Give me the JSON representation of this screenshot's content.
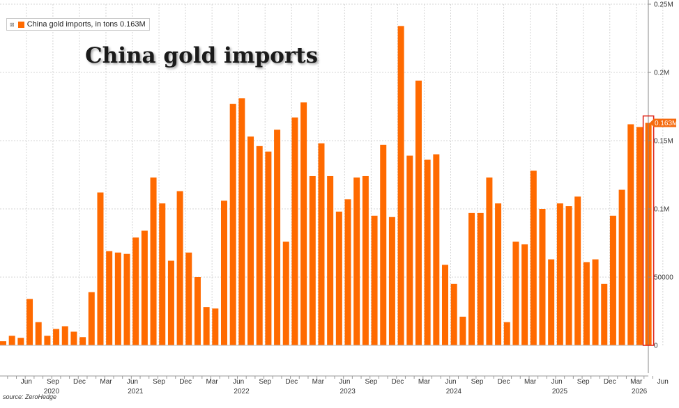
{
  "legend": {
    "label": "China gold imports, in tons 0.163M",
    "icon_name": "legend-toggle-icon"
  },
  "title": "China gold imports",
  "source": "source: ZeroHedge",
  "colors": {
    "bar": "#ff6a00",
    "highlight_box": "#e0271b",
    "label_bg": "#f56a0e",
    "grid": "#d4d4d4",
    "axis_text": "#333333"
  },
  "chart_data": {
    "type": "bar",
    "title": "China gold imports",
    "ylim": [
      0,
      250000
    ],
    "yticks": [
      {
        "value": 0,
        "label": "0"
      },
      {
        "value": 50000,
        "label": "50000"
      },
      {
        "value": 100000,
        "label": "0.1M"
      },
      {
        "value": 150000,
        "label": "0.15M"
      },
      {
        "value": 200000,
        "label": "0.2M"
      },
      {
        "value": 250000,
        "label": "0.25M"
      }
    ],
    "last_value_label": "0.163M",
    "grid": true,
    "legend_position": "top-left",
    "x_month_labels": [
      "Jun",
      "Sep",
      "Dec",
      "Mar",
      "Jun",
      "Sep",
      "Dec",
      "Mar",
      "Jun",
      "Sep",
      "Dec",
      "Mar",
      "Jun",
      "Sep",
      "Dec",
      "Mar",
      "Jun",
      "Sep",
      "Dec",
      "Mar",
      "Jun",
      "Sep",
      "Dec",
      "Mar",
      "Jun"
    ],
    "x_year_labels": [
      "2020",
      "2021",
      "2022",
      "2023",
      "2024",
      "2025",
      "2026"
    ],
    "series": [
      {
        "name": "China gold imports, in tons",
        "start": "2020-04",
        "values": [
          3000,
          7000,
          5500,
          34000,
          17000,
          7000,
          12000,
          14000,
          10000,
          6000,
          39000,
          112000,
          69000,
          68000,
          67000,
          79000,
          84000,
          123000,
          104000,
          62000,
          113000,
          68000,
          50000,
          28000,
          27000,
          106000,
          177000,
          181000,
          153000,
          146000,
          142000,
          158000,
          76000,
          167000,
          178000,
          124000,
          148000,
          124000,
          98000,
          107000,
          123000,
          124000,
          95000,
          147000,
          94000,
          234000,
          139000,
          194000,
          136000,
          140000,
          59000,
          45000,
          21000,
          97000,
          97000,
          123000,
          104000,
          17000,
          76000,
          74000,
          128000,
          100000,
          63000,
          104000,
          102000,
          109000,
          61000,
          63000,
          45000,
          95000,
          114000,
          162000,
          160000,
          163000
        ]
      }
    ],
    "highlighted_last_n": 1
  }
}
